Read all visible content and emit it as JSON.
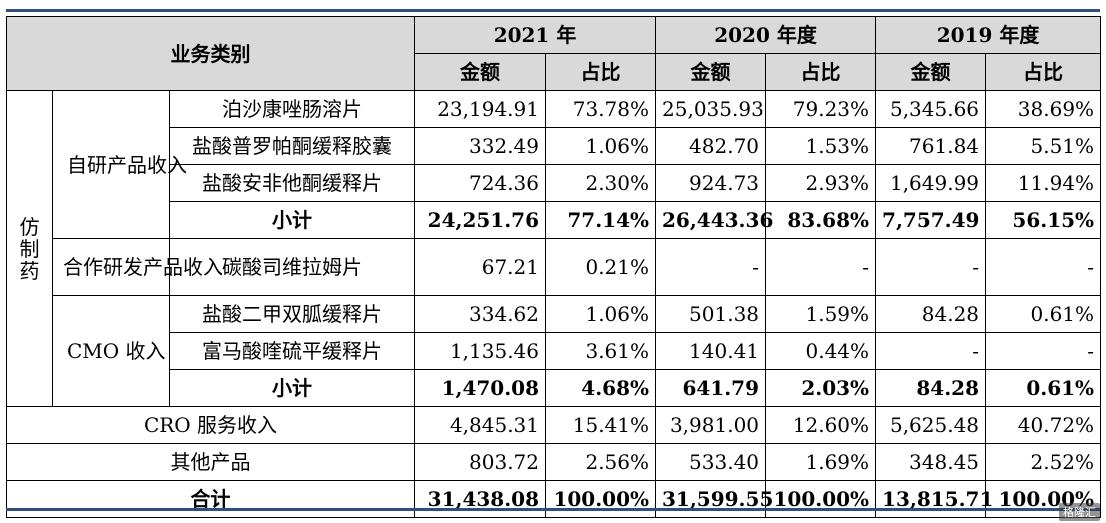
{
  "header": {
    "category": "业务类别",
    "years": [
      "2021 年",
      "2020 年度",
      "2019 年度"
    ],
    "amount": "金额",
    "ratio": "占比"
  },
  "groups": {
    "generic": "仿制药",
    "self_dev": "自研产品收入",
    "co_dev": "合作研发产品收入",
    "cmo": "CMO 收入"
  },
  "rows": [
    {
      "label": "泊沙康唑肠溶片",
      "v": [
        "23,194.91",
        "73.78%",
        "25,035.93",
        "79.23%",
        "5,345.66",
        "38.69%"
      ]
    },
    {
      "label": "盐酸普罗帕酮缓释胶囊",
      "v": [
        "332.49",
        "1.06%",
        "482.70",
        "1.53%",
        "761.84",
        "5.51%"
      ]
    },
    {
      "label": "盐酸安非他酮缓释片",
      "v": [
        "724.36",
        "2.30%",
        "924.73",
        "2.93%",
        "1,649.99",
        "11.94%"
      ]
    },
    {
      "label": "小计",
      "v": [
        "24,251.76",
        "77.14%",
        "26,443.36",
        "83.68%",
        "7,757.49",
        "56.15%"
      ]
    },
    {
      "label": "碳酸司维拉姆片",
      "v": [
        "67.21",
        "0.21%",
        "-",
        "-",
        "-",
        "-"
      ]
    },
    {
      "label": "盐酸二甲双胍缓释片",
      "v": [
        "334.62",
        "1.06%",
        "501.38",
        "1.59%",
        "84.28",
        "0.61%"
      ]
    },
    {
      "label": "富马酸喹硫平缓释片",
      "v": [
        "1,135.46",
        "3.61%",
        "140.41",
        "0.44%",
        "-",
        "-"
      ]
    },
    {
      "label": "小计",
      "v": [
        "1,470.08",
        "4.68%",
        "641.79",
        "2.03%",
        "84.28",
        "0.61%"
      ]
    },
    {
      "label": "CRO 服务收入",
      "v": [
        "4,845.31",
        "15.41%",
        "3,981.00",
        "12.60%",
        "5,625.48",
        "40.72%"
      ]
    },
    {
      "label": "其他产品",
      "v": [
        "803.72",
        "2.56%",
        "533.40",
        "1.69%",
        "348.45",
        "2.52%"
      ]
    },
    {
      "label": "合计",
      "v": [
        "31,438.08",
        "100.00%",
        "31,599.55",
        "100.00%",
        "13,815.71",
        "100.00%"
      ]
    }
  ],
  "watermark": "格隆汇"
}
